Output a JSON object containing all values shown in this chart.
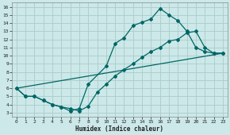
{
  "xlabel": "Humidex (Indice chaleur)",
  "background_color": "#cce8e8",
  "grid_color": "#aacccc",
  "line_color": "#006666",
  "xlim": [
    -0.5,
    23.5
  ],
  "ylim": [
    2.5,
    16.5
  ],
  "xticks": [
    0,
    1,
    2,
    3,
    4,
    5,
    6,
    7,
    8,
    9,
    10,
    11,
    12,
    13,
    14,
    15,
    16,
    17,
    18,
    19,
    20,
    21,
    22,
    23
  ],
  "yticks": [
    3,
    4,
    5,
    6,
    7,
    8,
    9,
    10,
    11,
    12,
    13,
    14,
    15,
    16
  ],
  "line1_x": [
    0,
    1,
    2,
    3,
    4,
    5,
    6,
    7,
    8,
    10,
    11,
    12,
    13,
    14,
    15,
    16,
    17,
    18,
    19,
    20,
    21,
    22,
    23
  ],
  "line1_y": [
    6,
    5,
    5,
    4.5,
    4,
    3.7,
    3.2,
    3.5,
    6.5,
    8.7,
    11.5,
    12.2,
    13.7,
    14.1,
    14.5,
    15.8,
    15.0,
    14.3,
    13.0,
    11.0,
    10.5,
    10.3,
    10.3
  ],
  "line2_x": [
    0,
    1,
    2,
    3,
    4,
    5,
    6,
    7,
    8,
    9,
    10,
    11,
    12,
    13,
    14,
    15,
    16,
    17,
    18,
    19,
    20,
    21,
    22,
    23
  ],
  "line2_y": [
    6,
    5,
    5,
    4.5,
    4.0,
    3.7,
    3.5,
    3.2,
    3.8,
    5.5,
    6.5,
    7.5,
    8.3,
    9.0,
    9.8,
    10.5,
    11.0,
    11.8,
    12.0,
    12.8,
    13.0,
    11.0,
    10.3,
    10.3
  ],
  "line3_x": [
    0,
    23
  ],
  "line3_y": [
    6,
    10.3
  ]
}
